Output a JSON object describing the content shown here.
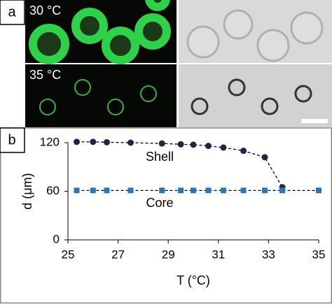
{
  "panel_a": {
    "label": "a",
    "top_temp": "30 °C",
    "bottom_temp": "35 °C"
  },
  "chart_data": {
    "type": "scatter",
    "panel_label": "b",
    "xlabel": "T (°C)",
    "ylabel": "d (μm)",
    "xlim": [
      25,
      35
    ],
    "ylim": [
      0,
      120
    ],
    "xticks": [
      25,
      27,
      29,
      31,
      33,
      35
    ],
    "yticks": [
      0,
      60,
      120
    ],
    "series": [
      {
        "name": "Shell",
        "color": "#1b2744",
        "marker": "circle",
        "line_style": "dashed",
        "x": [
          25.35,
          26.0,
          26.55,
          27.5,
          28.75,
          29.5,
          30.0,
          30.6,
          31.2,
          32.0,
          32.85,
          33.55
        ],
        "values": [
          121,
          121,
          120.5,
          120,
          119,
          118,
          117.5,
          116,
          114,
          110,
          102,
          65
        ]
      },
      {
        "name": "Core",
        "color": "#2e75b6",
        "marker": "square",
        "line_style": "dashed",
        "x": [
          25.35,
          26.0,
          26.55,
          27.5,
          28.75,
          29.5,
          30.0,
          30.6,
          31.2,
          32.0,
          32.85,
          33.55,
          35.0
        ],
        "values": [
          61,
          61,
          61,
          61,
          61,
          61,
          61,
          61,
          61,
          61,
          61,
          61,
          61
        ]
      }
    ]
  }
}
